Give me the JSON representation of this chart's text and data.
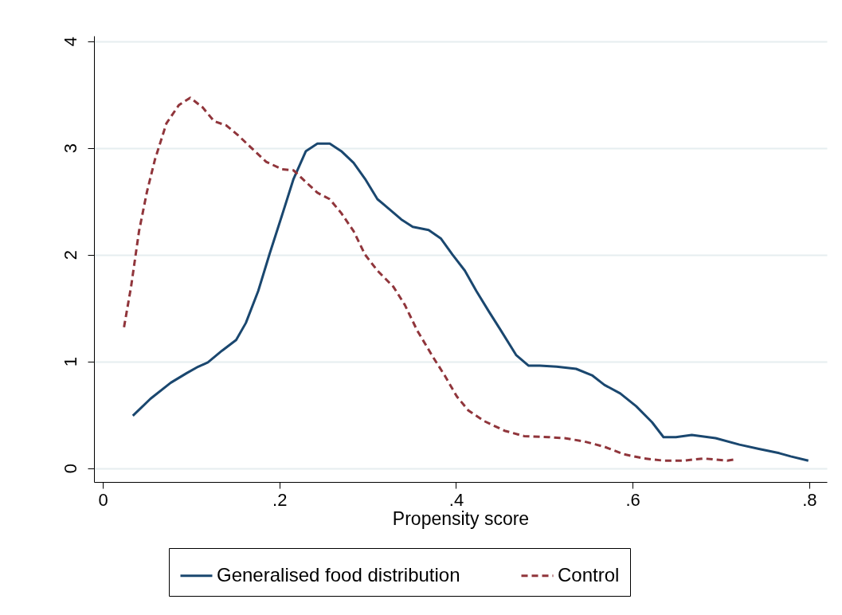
{
  "chart_data": {
    "type": "line",
    "xlabel": "Propensity score",
    "xlim": [
      -0.01,
      0.82
    ],
    "ylim": [
      -0.13,
      4.05
    ],
    "xticks": [
      {
        "value": 0,
        "label": "0"
      },
      {
        "value": 0.2,
        "label": ".2"
      },
      {
        "value": 0.4,
        "label": ".4"
      },
      {
        "value": 0.6,
        "label": ".6"
      },
      {
        "value": 0.8,
        "label": ".8"
      }
    ],
    "yticks": [
      0,
      1,
      2,
      3,
      4
    ],
    "grid": "y",
    "legend": "bottom",
    "series": [
      {
        "name": "Generalised food distribution",
        "color": "#1a476f",
        "line_style": "solid",
        "x": [
          0.034,
          0.054,
          0.077,
          0.095,
          0.108,
          0.119,
          0.135,
          0.151,
          0.162,
          0.176,
          0.189,
          0.203,
          0.216,
          0.23,
          0.243,
          0.257,
          0.27,
          0.284,
          0.297,
          0.311,
          0.324,
          0.338,
          0.351,
          0.369,
          0.383,
          0.396,
          0.41,
          0.423,
          0.437,
          0.45,
          0.468,
          0.482,
          0.495,
          0.514,
          0.536,
          0.554,
          0.568,
          0.586,
          0.604,
          0.622,
          0.635,
          0.649,
          0.667,
          0.694,
          0.721,
          0.743,
          0.766,
          0.779,
          0.799
        ],
        "values": [
          0.49,
          0.65,
          0.8,
          0.89,
          0.95,
          0.99,
          1.1,
          1.2,
          1.36,
          1.66,
          2.01,
          2.37,
          2.71,
          2.97,
          3.04,
          3.04,
          2.97,
          2.86,
          2.71,
          2.52,
          2.43,
          2.33,
          2.26,
          2.23,
          2.15,
          2.0,
          1.85,
          1.66,
          1.47,
          1.3,
          1.06,
          0.96,
          0.96,
          0.95,
          0.93,
          0.87,
          0.78,
          0.7,
          0.58,
          0.43,
          0.29,
          0.29,
          0.31,
          0.28,
          0.22,
          0.18,
          0.14,
          0.11,
          0.07
        ]
      },
      {
        "name": "Control",
        "color": "#90353b",
        "line_style": "dashed",
        "x": [
          0.024,
          0.032,
          0.041,
          0.05,
          0.059,
          0.072,
          0.086,
          0.099,
          0.113,
          0.126,
          0.14,
          0.153,
          0.167,
          0.185,
          0.203,
          0.216,
          0.23,
          0.243,
          0.257,
          0.27,
          0.284,
          0.297,
          0.311,
          0.329,
          0.342,
          0.356,
          0.374,
          0.387,
          0.401,
          0.414,
          0.432,
          0.455,
          0.477,
          0.505,
          0.523,
          0.545,
          0.568,
          0.59,
          0.613,
          0.635,
          0.658,
          0.68,
          0.707,
          0.715
        ],
        "values": [
          1.32,
          1.7,
          2.22,
          2.59,
          2.89,
          3.23,
          3.4,
          3.47,
          3.38,
          3.25,
          3.21,
          3.12,
          3.01,
          2.87,
          2.8,
          2.79,
          2.68,
          2.58,
          2.52,
          2.39,
          2.22,
          2.0,
          1.85,
          1.7,
          1.53,
          1.29,
          1.04,
          0.87,
          0.67,
          0.54,
          0.44,
          0.35,
          0.3,
          0.29,
          0.28,
          0.25,
          0.2,
          0.13,
          0.09,
          0.07,
          0.07,
          0.09,
          0.07,
          0.08
        ]
      }
    ]
  }
}
